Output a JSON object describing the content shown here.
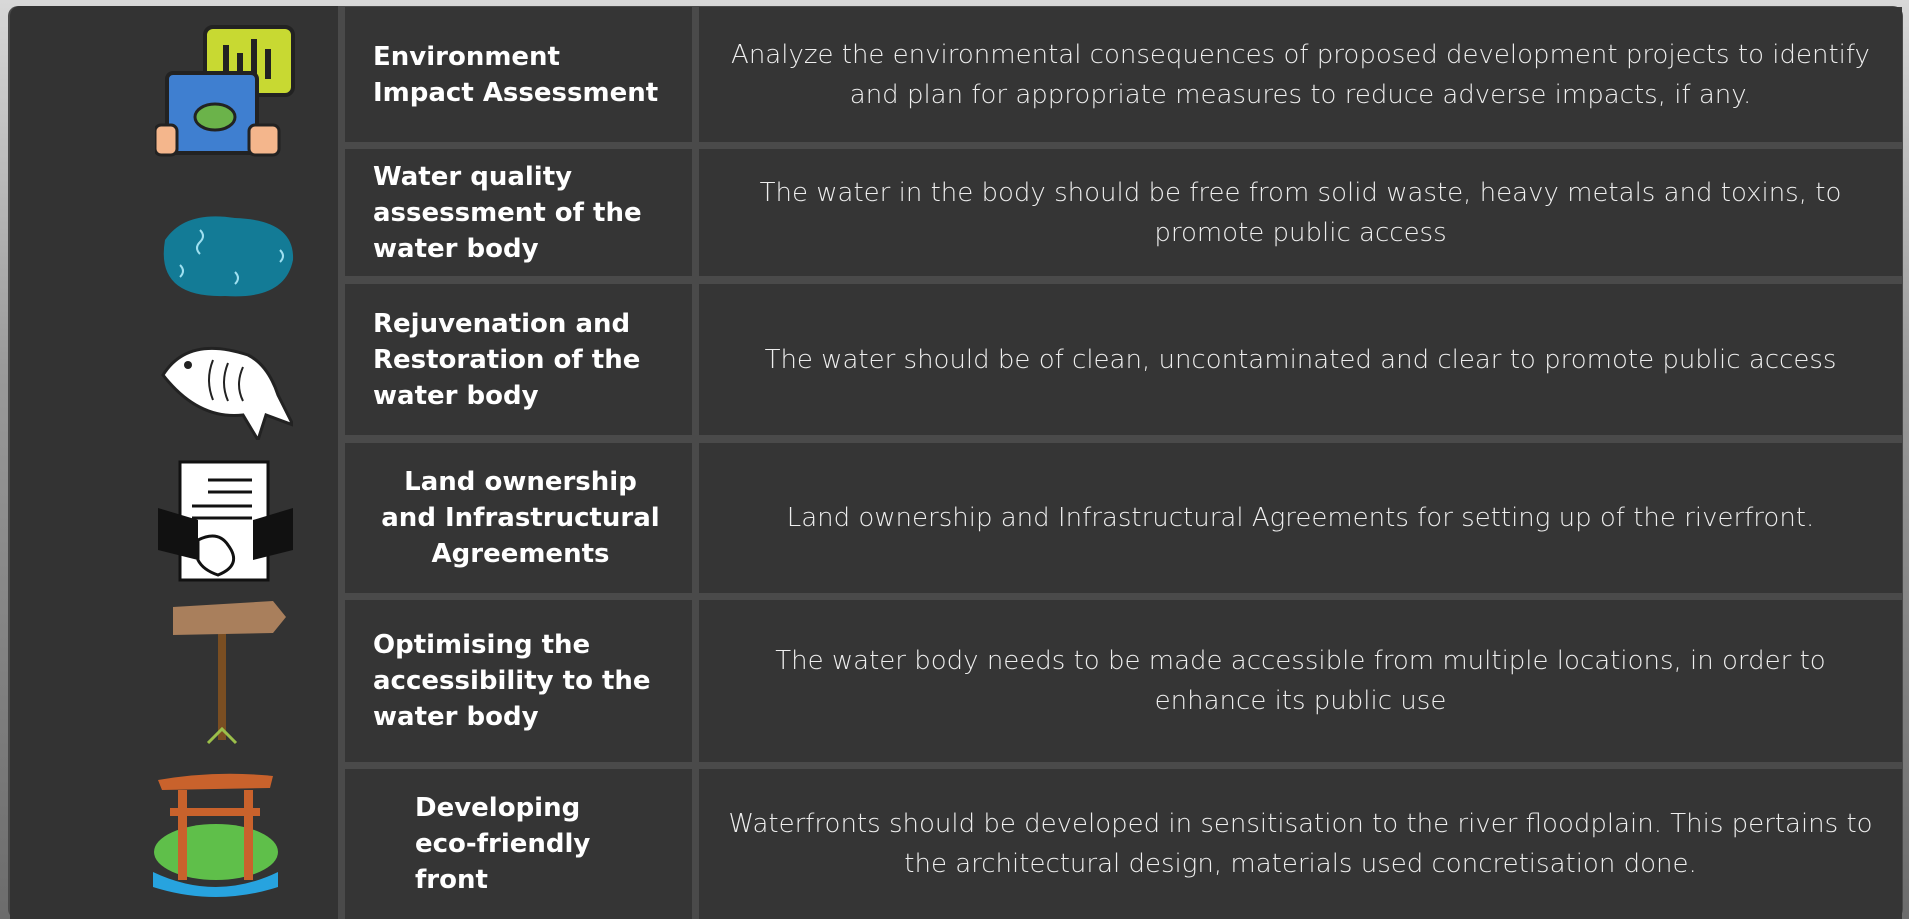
{
  "table": {
    "rows": [
      {
        "title": "Environment Impact Assessment",
        "description": "Analyze the environmental consequences of proposed development projects to identify and plan for appropriate measures to reduce adverse impacts, if any."
      },
      {
        "title": "Water quality assessment of the water body",
        "description": "The water in the body should be free from solid waste, heavy metals and toxins, to promote public access"
      },
      {
        "title": "Rejuvenation and Restoration of the water body",
        "description": "The water should be of clean, uncontaminated and clear to promote public access"
      },
      {
        "title": "Land ownership and Infrastructural Agreements",
        "description": "Land ownership and Infrastructural Agreements for setting up of the riverfront."
      },
      {
        "title": "Optimising the accessibility to the water body",
        "description": "The water body needs to be made accessible from multiple locations, in order to enhance its public use"
      },
      {
        "title": "Developing eco-friendly front",
        "description": "Waterfronts should be developed in sensitisation to the river floodplain. This pertains to the architectural design, materials used concretisation done."
      }
    ]
  }
}
